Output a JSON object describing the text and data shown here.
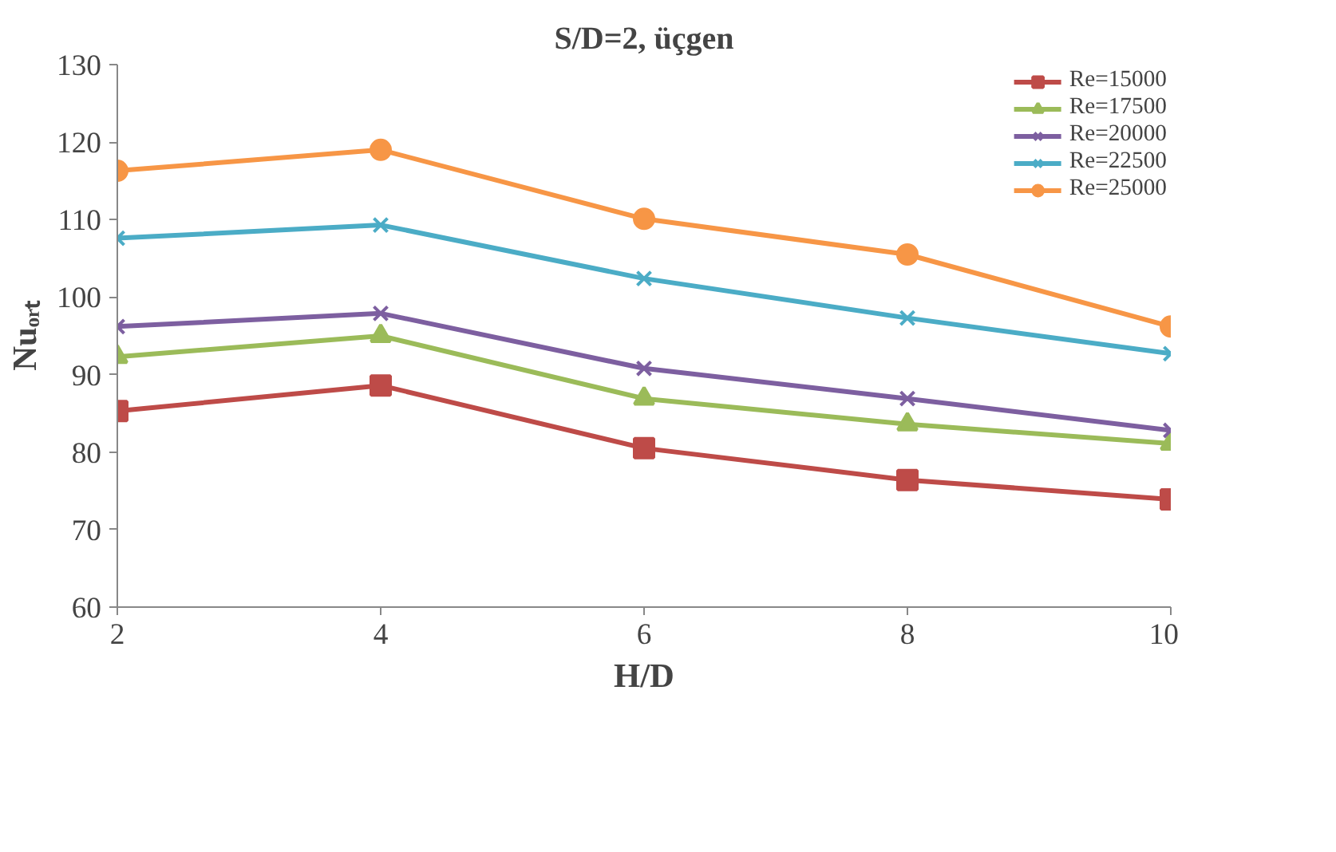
{
  "chart_data": {
    "type": "line",
    "title": "S/D=2, üçgen",
    "xlabel": "H/D",
    "ylabel": "Nuₒᵣₜ",
    "x": [
      2,
      4,
      6,
      8,
      10
    ],
    "xlim": [
      2,
      10
    ],
    "xticks": [
      2,
      4,
      6,
      8,
      10
    ],
    "ylim": [
      60,
      130
    ],
    "yticks": [
      60,
      70,
      80,
      90,
      100,
      110,
      120,
      130
    ],
    "grid": false,
    "legend": "top right",
    "line_style": "solid",
    "series": [
      {
        "name": "Re=15000",
        "color": "#be4b48",
        "marker": "square",
        "values": [
          85.3,
          88.6,
          80.5,
          76.4,
          73.9
        ]
      },
      {
        "name": "Re=17500",
        "color": "#9bbb59",
        "marker": "triangle",
        "values": [
          92.3,
          95.0,
          86.9,
          83.6,
          81.1
        ]
      },
      {
        "name": "Re=20000",
        "color": "#7d5fa0",
        "marker": "cross",
        "values": [
          96.2,
          97.9,
          90.8,
          86.9,
          82.8
        ]
      },
      {
        "name": "Re=22500",
        "color": "#4bacc6",
        "marker": "cross",
        "values": [
          107.6,
          109.3,
          102.4,
          97.3,
          92.7
        ]
      },
      {
        "name": "Re=25000",
        "color": "#f79646",
        "marker": "circle",
        "values": [
          116.3,
          119.0,
          110.1,
          105.5,
          96.2
        ]
      }
    ]
  }
}
